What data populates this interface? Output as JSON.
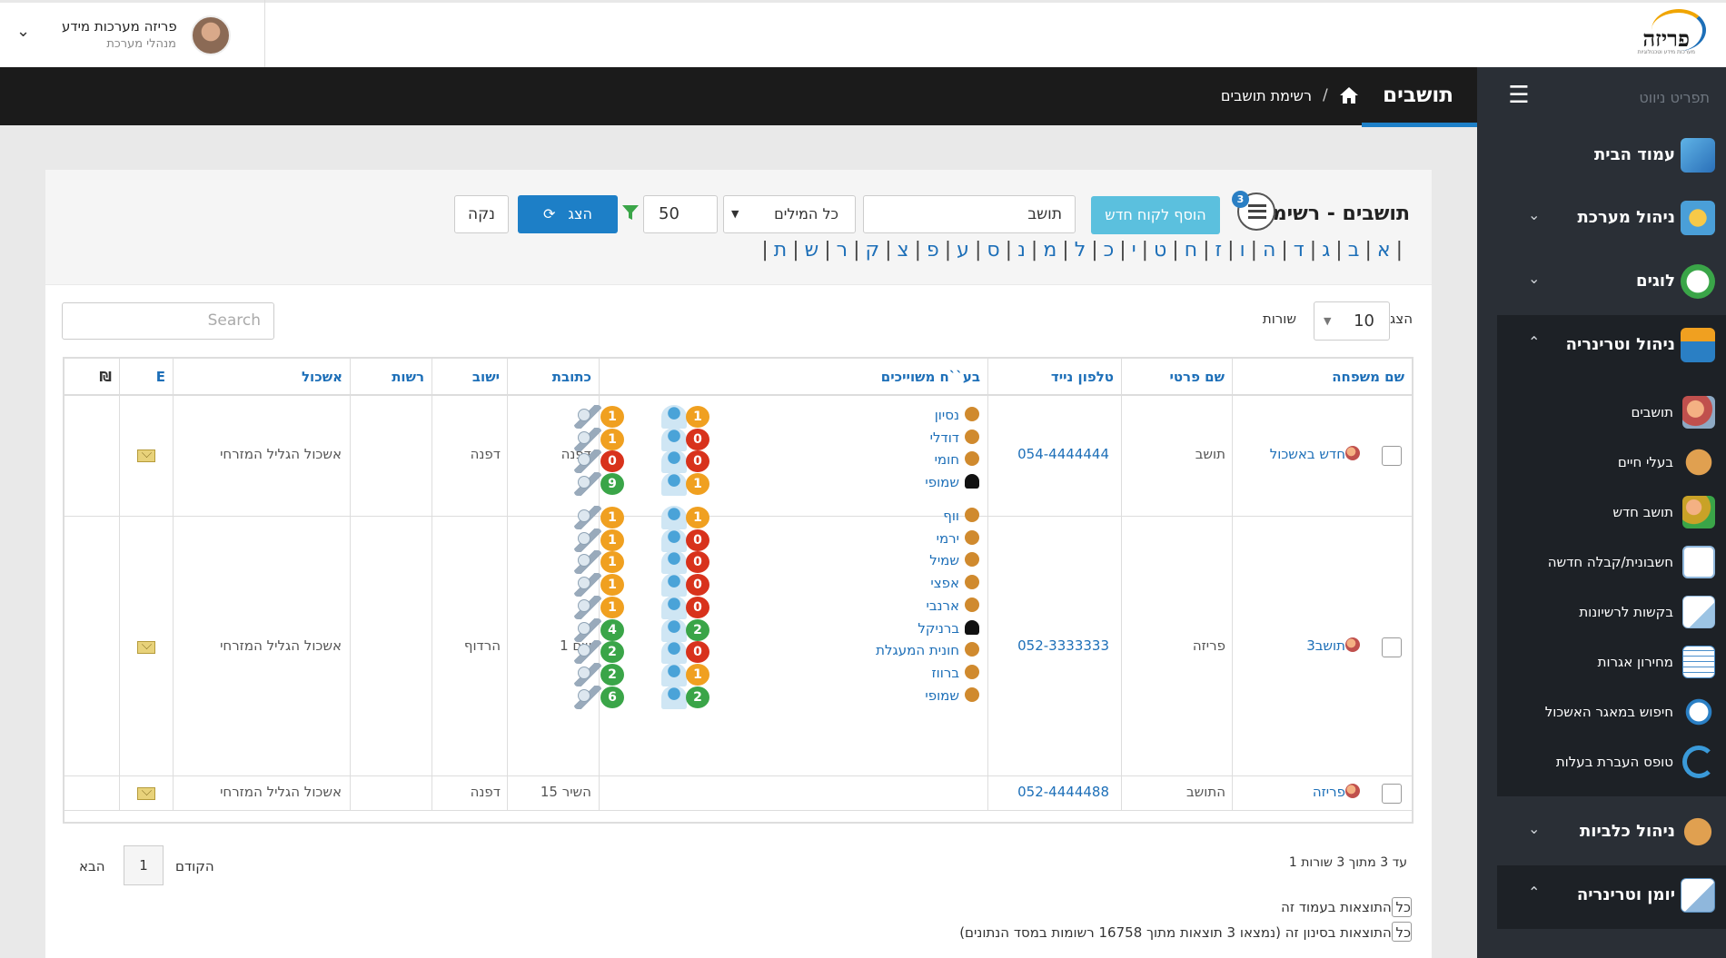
{
  "app": {
    "logo_text": "פריזה",
    "logo_sub": "מערכות מידע וטכנולוגיות",
    "user_name": "פריזה מערכות מידע",
    "user_role": "מנהלי מערכת"
  },
  "header": {
    "sidebar_title": "תפריט ניווט",
    "page_title": "תושבים",
    "breadcrumb_current": "רשימת תושבים",
    "breadcrumb_sep": "/"
  },
  "sidebar": {
    "sections": [
      {
        "label": "עמוד הבית",
        "icon": "home-store-icon",
        "chevron": ""
      },
      {
        "label": "ניהול מערכת",
        "icon": "gears-icon",
        "chevron": "⌄"
      },
      {
        "label": "לוגים",
        "icon": "clock-icon",
        "chevron": "⌄"
      },
      {
        "label": "ניהול וטרינריה",
        "icon": "vet-building-icon",
        "chevron": "⌃"
      }
    ],
    "sub_items": [
      {
        "label": "תושבים",
        "icon": "residents-icon"
      },
      {
        "label": "בעלי חיים",
        "icon": "dog-icon"
      },
      {
        "label": "תושב חדש",
        "icon": "add-person-icon"
      },
      {
        "label": "חשבונית/קבלה חדשה",
        "icon": "new-invoice-icon"
      },
      {
        "label": "בקשות לרשיונות",
        "icon": "documents-icon"
      },
      {
        "label": "מחירון אגרות",
        "icon": "price-table-icon"
      },
      {
        "label": "חיפוש במאגר האשכול",
        "icon": "database-search-icon"
      },
      {
        "label": "טופס העברת בעלות",
        "icon": "transfer-icon"
      }
    ],
    "sections2": [
      {
        "label": "ניהול כלביות",
        "icon": "kennel-icon",
        "chevron": "⌄"
      },
      {
        "label": "יומן וטרינריה",
        "icon": "journal-icon",
        "chevron": "⌃"
      }
    ]
  },
  "filter": {
    "list_title": "תושבים - רשימה",
    "list_count": "3",
    "add_button": "הוסף לקוח חדש",
    "search_value": "תושב",
    "words_option": "כל המילים",
    "count_value": "50",
    "show_button": "הצג",
    "clear_button": "נקה",
    "alphabet": [
      "א",
      "ב",
      "ג",
      "ד",
      "ה",
      "ו",
      "ז",
      "ח",
      "ט",
      "י",
      "כ",
      "ל",
      "מ",
      "נ",
      "ס",
      "ע",
      "פ",
      "צ",
      "ק",
      "ר",
      "ש",
      "ת"
    ]
  },
  "table": {
    "search_placeholder": "Search",
    "length_show": "הצג",
    "length_value": "10",
    "length_rows": "שורות",
    "columns": {
      "last_name": "שם משפחה",
      "first_name": "שם פרטי",
      "phone": "טלפון נייד",
      "pets": "בע``ח משוייכים",
      "address": "כתובת",
      "town": "ישוב",
      "authority": "רשות",
      "cluster": "אשכול",
      "email": "E",
      "currency": "₪"
    },
    "rows": [
      {
        "last_name": "חדש באשכול",
        "first_name": "תושב",
        "phone": "054-4444444",
        "address": "דפנה",
        "town": "דפנה",
        "authority": "",
        "cluster": "אשכול הגליל המזרחי",
        "pets": [
          {
            "name": "נסיון",
            "type": "dog",
            "vet": "1",
            "vacc": "1"
          },
          {
            "name": "דודלי",
            "type": "dog",
            "vet": "0",
            "vacc": "1"
          },
          {
            "name": "חומי",
            "type": "dog",
            "vet": "0",
            "vacc": "0"
          },
          {
            "name": "שמופי",
            "type": "cat",
            "vet": "1",
            "vacc": "9"
          }
        ]
      },
      {
        "last_name": "תושב3",
        "first_name": "פריזה",
        "phone": "052-3333333",
        "address": "שם 1",
        "town": "הרדוף",
        "authority": "",
        "cluster": "אשכול הגליל המזרחי",
        "pets": [
          {
            "name": "ווף",
            "type": "dog",
            "vet": "1",
            "vacc": "1"
          },
          {
            "name": "ירמי",
            "type": "dog",
            "vet": "0",
            "vacc": "1"
          },
          {
            "name": "שמיל",
            "type": "dog",
            "vet": "0",
            "vacc": "1"
          },
          {
            "name": "אפצי",
            "type": "dog",
            "vet": "0",
            "vacc": "1"
          },
          {
            "name": "ארנבי",
            "type": "dog",
            "vet": "0",
            "vacc": "1"
          },
          {
            "name": "ברניקל",
            "type": "cat",
            "vet": "2",
            "vacc": "4"
          },
          {
            "name": "חונית המעגלת",
            "type": "dog",
            "vet": "0",
            "vacc": "2"
          },
          {
            "name": "ברווז",
            "type": "dog",
            "vet": "1",
            "vacc": "2"
          },
          {
            "name": "שמופי",
            "type": "dog",
            "vet": "2",
            "vacc": "6"
          }
        ]
      },
      {
        "last_name": "פריזה",
        "first_name": "התושב",
        "phone": "052-4444488",
        "address": "השיר 15",
        "town": "דפנה",
        "authority": "",
        "cluster": "אשכול הגליל המזרחי",
        "pets": []
      }
    ],
    "info": "1 עד 3 מתוך 3 שורות",
    "prev": "הקודם",
    "page": "1",
    "next": "הבא",
    "select_page": "כל התוצאות בעמוד זה",
    "select_all": "כל התוצאות בסינון זה (נמצאו 3 תוצאות מתוך 16758 רשומות במסד הנתונים)"
  },
  "colors": {
    "accent": "#1d7fc7",
    "sidebar": "#2a2f36",
    "header": "#1b1b1b",
    "add_button": "#5bc0de",
    "badge_orange": "#f0a020",
    "badge_red": "#d8321c",
    "badge_green": "#3aa548"
  }
}
